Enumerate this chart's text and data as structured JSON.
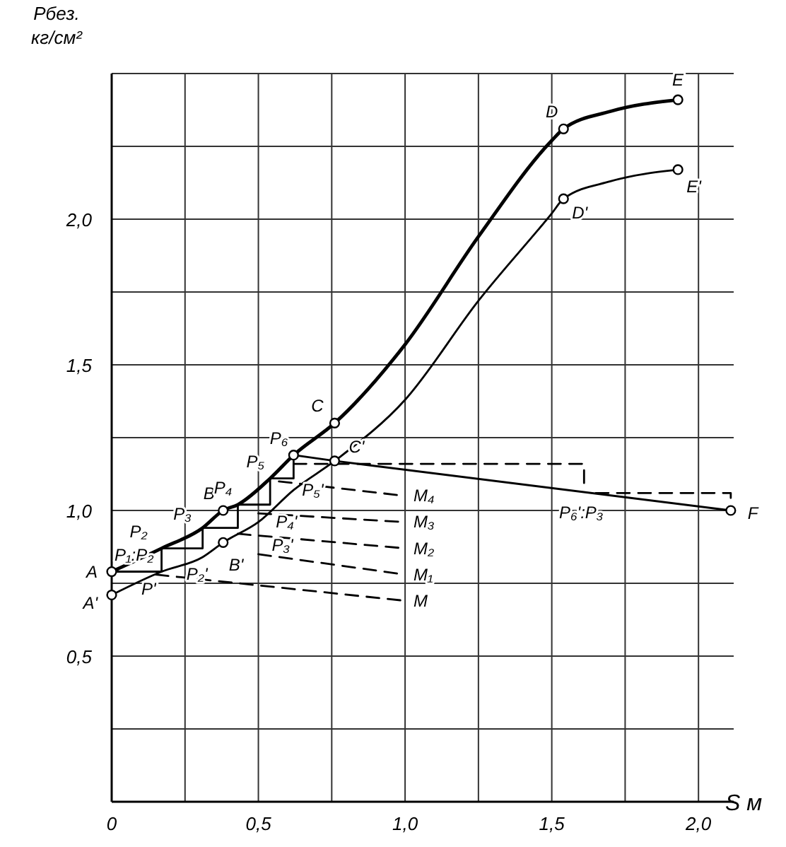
{
  "chart_data": {
    "type": "line",
    "xlabel": "S м",
    "ylabel": "Pбез. кг/см²",
    "xlim": [
      0,
      2.12
    ],
    "ylim": [
      0,
      2.5
    ],
    "xticks": [
      0,
      {
        "value": 0.25,
        "label": null
      },
      {
        "value": 0.5,
        "label": "0,5"
      },
      {
        "value": 0.75,
        "label": null
      },
      {
        "value": 1,
        "label": "1,0"
      },
      {
        "value": 1.25,
        "label": null
      },
      {
        "value": 1.5,
        "label": "1,5"
      },
      {
        "value": 1.75,
        "label": null
      },
      {
        "value": 2,
        "label": "2,0"
      }
    ],
    "yticks": [
      {
        "value": 0.25,
        "label": null
      },
      {
        "value": 0.5,
        "label": "0,5"
      },
      {
        "value": 0.75,
        "label": null
      },
      {
        "value": 1,
        "label": "1,0"
      },
      {
        "value": 1.25,
        "label": null
      },
      {
        "value": 1.5,
        "label": "1,5"
      },
      {
        "value": 1.75,
        "label": null
      },
      {
        "value": 2,
        "label": "2,0"
      },
      {
        "value": 2.25,
        "label": null
      },
      {
        "value": 2.5,
        "label": null
      }
    ],
    "grid": true,
    "marker": "none",
    "line_style": "solid",
    "series": [
      {
        "color": "#000000",
        "x": [
          0,
          0.17,
          0.31,
          0.38,
          0.43,
          0.54,
          0.62,
          0.76,
          1.0,
          1.25,
          1.5,
          1.54,
          1.7,
          1.93
        ],
        "values": [
          0.79,
          0.87,
          0.94,
          1.0,
          1.02,
          1.11,
          1.19,
          1.3,
          1.57,
          1.94,
          2.27,
          2.31,
          2.37,
          2.41
        ]
      },
      {
        "color": "#000000",
        "x": [
          0,
          0.17,
          0.31,
          0.38,
          0.5,
          0.62,
          0.76,
          1.0,
          1.25,
          1.5,
          1.54,
          1.7,
          1.93
        ],
        "values": [
          0.71,
          0.79,
          0.84,
          0.89,
          0.96,
          1.07,
          1.17,
          1.38,
          1.72,
          2.02,
          2.07,
          2.13,
          2.17
        ]
      },
      {
        "color": "#000000",
        "x": [
          0,
          0.17,
          0.17,
          0.31,
          0.31,
          0.43,
          0.43,
          0.54,
          0.54,
          0.62,
          0.62
        ],
        "values": [
          0.79,
          0.79,
          0.87,
          0.87,
          0.94,
          0.94,
          1.02,
          1.02,
          1.11,
          1.11,
          1.19
        ]
      },
      {
        "color": "#000000",
        "x": [
          0.62,
          0.76,
          2.11
        ],
        "values": [
          1.19,
          1.17,
          1.0
        ]
      },
      {
        "color": "#000000",
        "line_style": "dashed",
        "x": [
          0.15,
          1.0
        ],
        "values": [
          0.78,
          0.69
        ]
      },
      {
        "color": "#000000",
        "line_style": "dashed",
        "x": [
          0.5,
          1.0
        ],
        "values": [
          0.85,
          0.78
        ]
      },
      {
        "color": "#000000",
        "line_style": "dashed",
        "x": [
          0.43,
          1.0
        ],
        "values": [
          0.92,
          0.87
        ]
      },
      {
        "color": "#000000",
        "line_style": "dashed",
        "x": [
          0.5,
          1.0
        ],
        "values": [
          0.99,
          0.96
        ]
      },
      {
        "color": "#000000",
        "line_style": "dashed",
        "x": [
          0.57,
          1.0
        ],
        "values": [
          1.1,
          1.05
        ]
      },
      {
        "color": "#000000",
        "line_style": "dashed",
        "x": [
          0.62,
          1.61,
          1.61
        ],
        "values": [
          1.16,
          1.16,
          1.07
        ]
      },
      {
        "color": "#000000",
        "line_style": "dashed",
        "x": [
          1.65,
          2.11,
          2.11
        ],
        "values": [
          1.06,
          1.06,
          1.01
        ]
      },
      {
        "type": "scatter",
        "marker": "circle",
        "color": "#000000",
        "x": [
          0,
          0,
          0.38,
          0.38,
          0.76,
          0.76,
          1.54,
          1.54,
          1.93,
          1.93,
          2.11,
          0.62
        ],
        "values": [
          0.79,
          0.71,
          1.0,
          0.89,
          1.3,
          1.17,
          2.31,
          2.07,
          2.41,
          2.17,
          1.0,
          1.19
        ]
      }
    ],
    "annotations": [
      {
        "text": "A",
        "x": 0,
        "y": 0.79
      },
      {
        "text": "A'",
        "x": 0,
        "y": 0.71
      },
      {
        "text": "B",
        "x": 0.38,
        "y": 1.0
      },
      {
        "text": "B'",
        "x": 0.38,
        "y": 0.89
      },
      {
        "text": "C",
        "x": 0.76,
        "y": 1.3
      },
      {
        "text": "C'",
        "x": 0.76,
        "y": 1.17
      },
      {
        "text": "D",
        "x": 1.54,
        "y": 2.31
      },
      {
        "text": "D'",
        "x": 1.54,
        "y": 2.07
      },
      {
        "text": "E",
        "x": 1.93,
        "y": 2.41
      },
      {
        "text": "E'",
        "x": 1.93,
        "y": 2.17
      },
      {
        "text": "F",
        "x": 2.11,
        "y": 1.0
      },
      {
        "text": "P₁:P₂",
        "x": 0,
        "y": 0.79
      },
      {
        "text": "P₂",
        "x": 0.17,
        "y": 0.87
      },
      {
        "text": "P₃",
        "x": 0.31,
        "y": 0.94
      },
      {
        "text": "P₄",
        "x": 0.43,
        "y": 1.02
      },
      {
        "text": "P₅",
        "x": 0.54,
        "y": 1.11
      },
      {
        "text": "P₆",
        "x": 0.62,
        "y": 1.19
      },
      {
        "text": "P'",
        "x": 0.17,
        "y": 0.79
      },
      {
        "text": "P₂'",
        "x": 0.31,
        "y": 0.87
      },
      {
        "text": "P₃'",
        "x": 0.43,
        "y": 0.94
      },
      {
        "text": "P₄'",
        "x": 0.54,
        "y": 1.02
      },
      {
        "text": "P₅'",
        "x": 0.62,
        "y": 1.11
      },
      {
        "text": "P₆':P₃",
        "x": 1.6,
        "y": 1.06
      },
      {
        "text": "M",
        "x": 1.0,
        "y": 0.69
      },
      {
        "text": "M₁",
        "x": 1.0,
        "y": 0.78
      },
      {
        "text": "M₂",
        "x": 1.0,
        "y": 0.87
      },
      {
        "text": "M₃",
        "x": 1.0,
        "y": 0.96
      },
      {
        "text": "M₄",
        "x": 1.0,
        "y": 1.05
      }
    ]
  }
}
